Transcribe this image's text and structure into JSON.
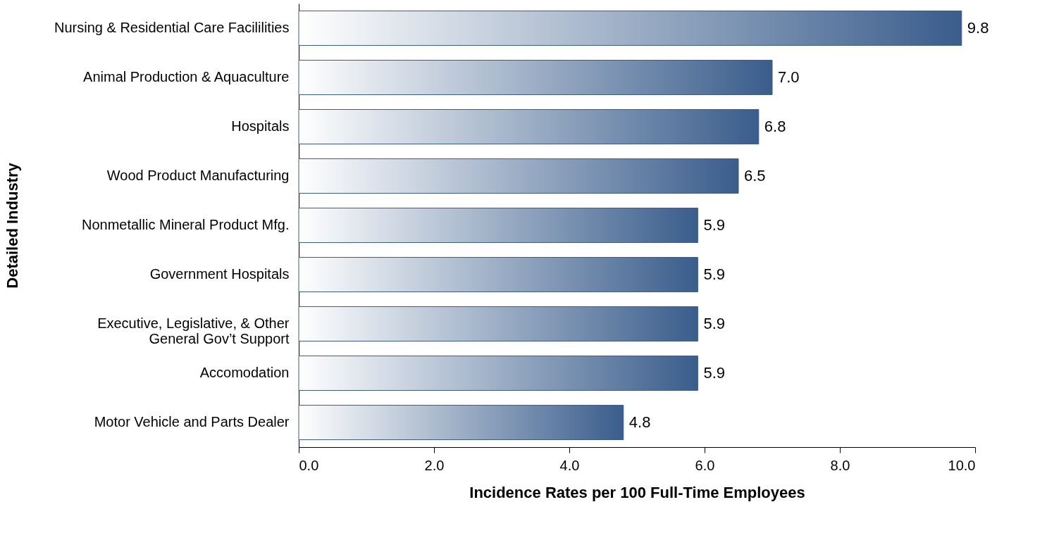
{
  "chart_data": {
    "type": "bar",
    "orientation": "horizontal",
    "categories": [
      "Nursing & Residential Care Facililities",
      "Animal Production & Aquaculture",
      "Hospitals",
      "Wood Product Manufacturing",
      "Nonmetallic Mineral Product Mfg.",
      "Government Hospitals",
      "Executive, Legislative, & Other\nGeneral Gov’t Support",
      "Accomodation",
      "Motor Vehicle and Parts Dealer"
    ],
    "values": [
      9.8,
      7.0,
      6.8,
      6.5,
      5.9,
      5.9,
      5.9,
      5.9,
      4.8
    ],
    "color": "#3a5d8c",
    "xlim": [
      0,
      10
    ],
    "xticks": [
      {
        "value": 0,
        "label": "0.0"
      },
      {
        "value": 2,
        "label": "2.0"
      },
      {
        "value": 4,
        "label": "4.0"
      },
      {
        "value": 6,
        "label": "6.0"
      },
      {
        "value": 8,
        "label": "8.0"
      },
      {
        "value": 10,
        "label": "10.0"
      }
    ],
    "xlabel": "Incidence Rates per 100 Full-Time Employees",
    "ylabel": "Detailed Industry",
    "value_labels": [
      "9.8",
      "7.0",
      "6.8",
      "6.5",
      "5.9",
      "5.9",
      "5.9",
      "5.9",
      "4.8"
    ],
    "grid": false
  }
}
